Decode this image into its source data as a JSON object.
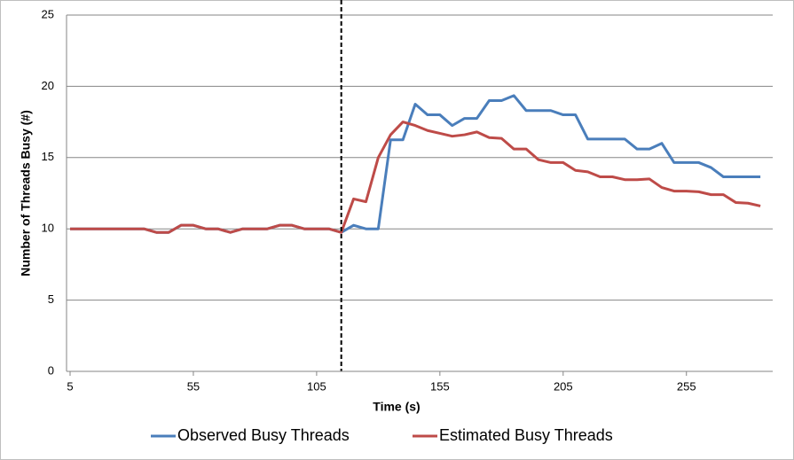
{
  "chart_data": {
    "type": "line",
    "x_label": "Time (s)",
    "y_label": "Number of Threads Busy (#)",
    "x": [
      5,
      10,
      15,
      20,
      25,
      30,
      35,
      40,
      45,
      50,
      55,
      60,
      65,
      70,
      75,
      80,
      85,
      90,
      95,
      100,
      105,
      110,
      115,
      120,
      125,
      130,
      135,
      140,
      145,
      150,
      155,
      160,
      165,
      170,
      175,
      180,
      185,
      190,
      195,
      200,
      205,
      210,
      215,
      220,
      225,
      230,
      235,
      240,
      245,
      250,
      255,
      260,
      265,
      270,
      275,
      280,
      285
    ],
    "series": [
      {
        "name": "Observed Busy Threads",
        "color": "#4a7ebb",
        "values": [
          10,
          10,
          10,
          10,
          10,
          10,
          10,
          9.75,
          9.75,
          10.25,
          10.25,
          10,
          10,
          9.75,
          10,
          10,
          10,
          10.25,
          10.25,
          10,
          10,
          10,
          9.75,
          10.25,
          10,
          10,
          16.25,
          16.25,
          18.75,
          18,
          18,
          17.25,
          17.75,
          17.75,
          19,
          19,
          19.35,
          18.3,
          18.3,
          18.3,
          18,
          18,
          16.3,
          16.3,
          16.3,
          16.3,
          15.6,
          15.6,
          16,
          14.65,
          14.65,
          14.65,
          14.3,
          13.65,
          13.65,
          13.65,
          13.65
        ]
      },
      {
        "name": "Estimated Busy Threads",
        "color": "#be4b48",
        "values": [
          10,
          10,
          10,
          10,
          10,
          10,
          10,
          9.75,
          9.75,
          10.25,
          10.25,
          10,
          10,
          9.75,
          10,
          10,
          10,
          10.25,
          10.25,
          10,
          10,
          10,
          9.75,
          12.1,
          11.9,
          15,
          16.6,
          17.5,
          17.25,
          16.9,
          16.7,
          16.5,
          16.6,
          16.8,
          16.4,
          16.35,
          15.6,
          15.6,
          14.85,
          14.65,
          14.65,
          14.1,
          14.0,
          13.65,
          13.65,
          13.45,
          13.45,
          13.5,
          12.9,
          12.65,
          12.65,
          12.6,
          12.4,
          12.4,
          11.85,
          11.8,
          11.6
        ]
      }
    ],
    "xlim": [
      5,
      290
    ],
    "xticks": [
      5,
      55,
      105,
      155,
      205,
      255
    ],
    "ylim": [
      0,
      25
    ],
    "yticks": [
      0,
      5,
      10,
      15,
      20,
      25
    ],
    "grid": true,
    "legend": "bottom",
    "vline_x": 115
  }
}
